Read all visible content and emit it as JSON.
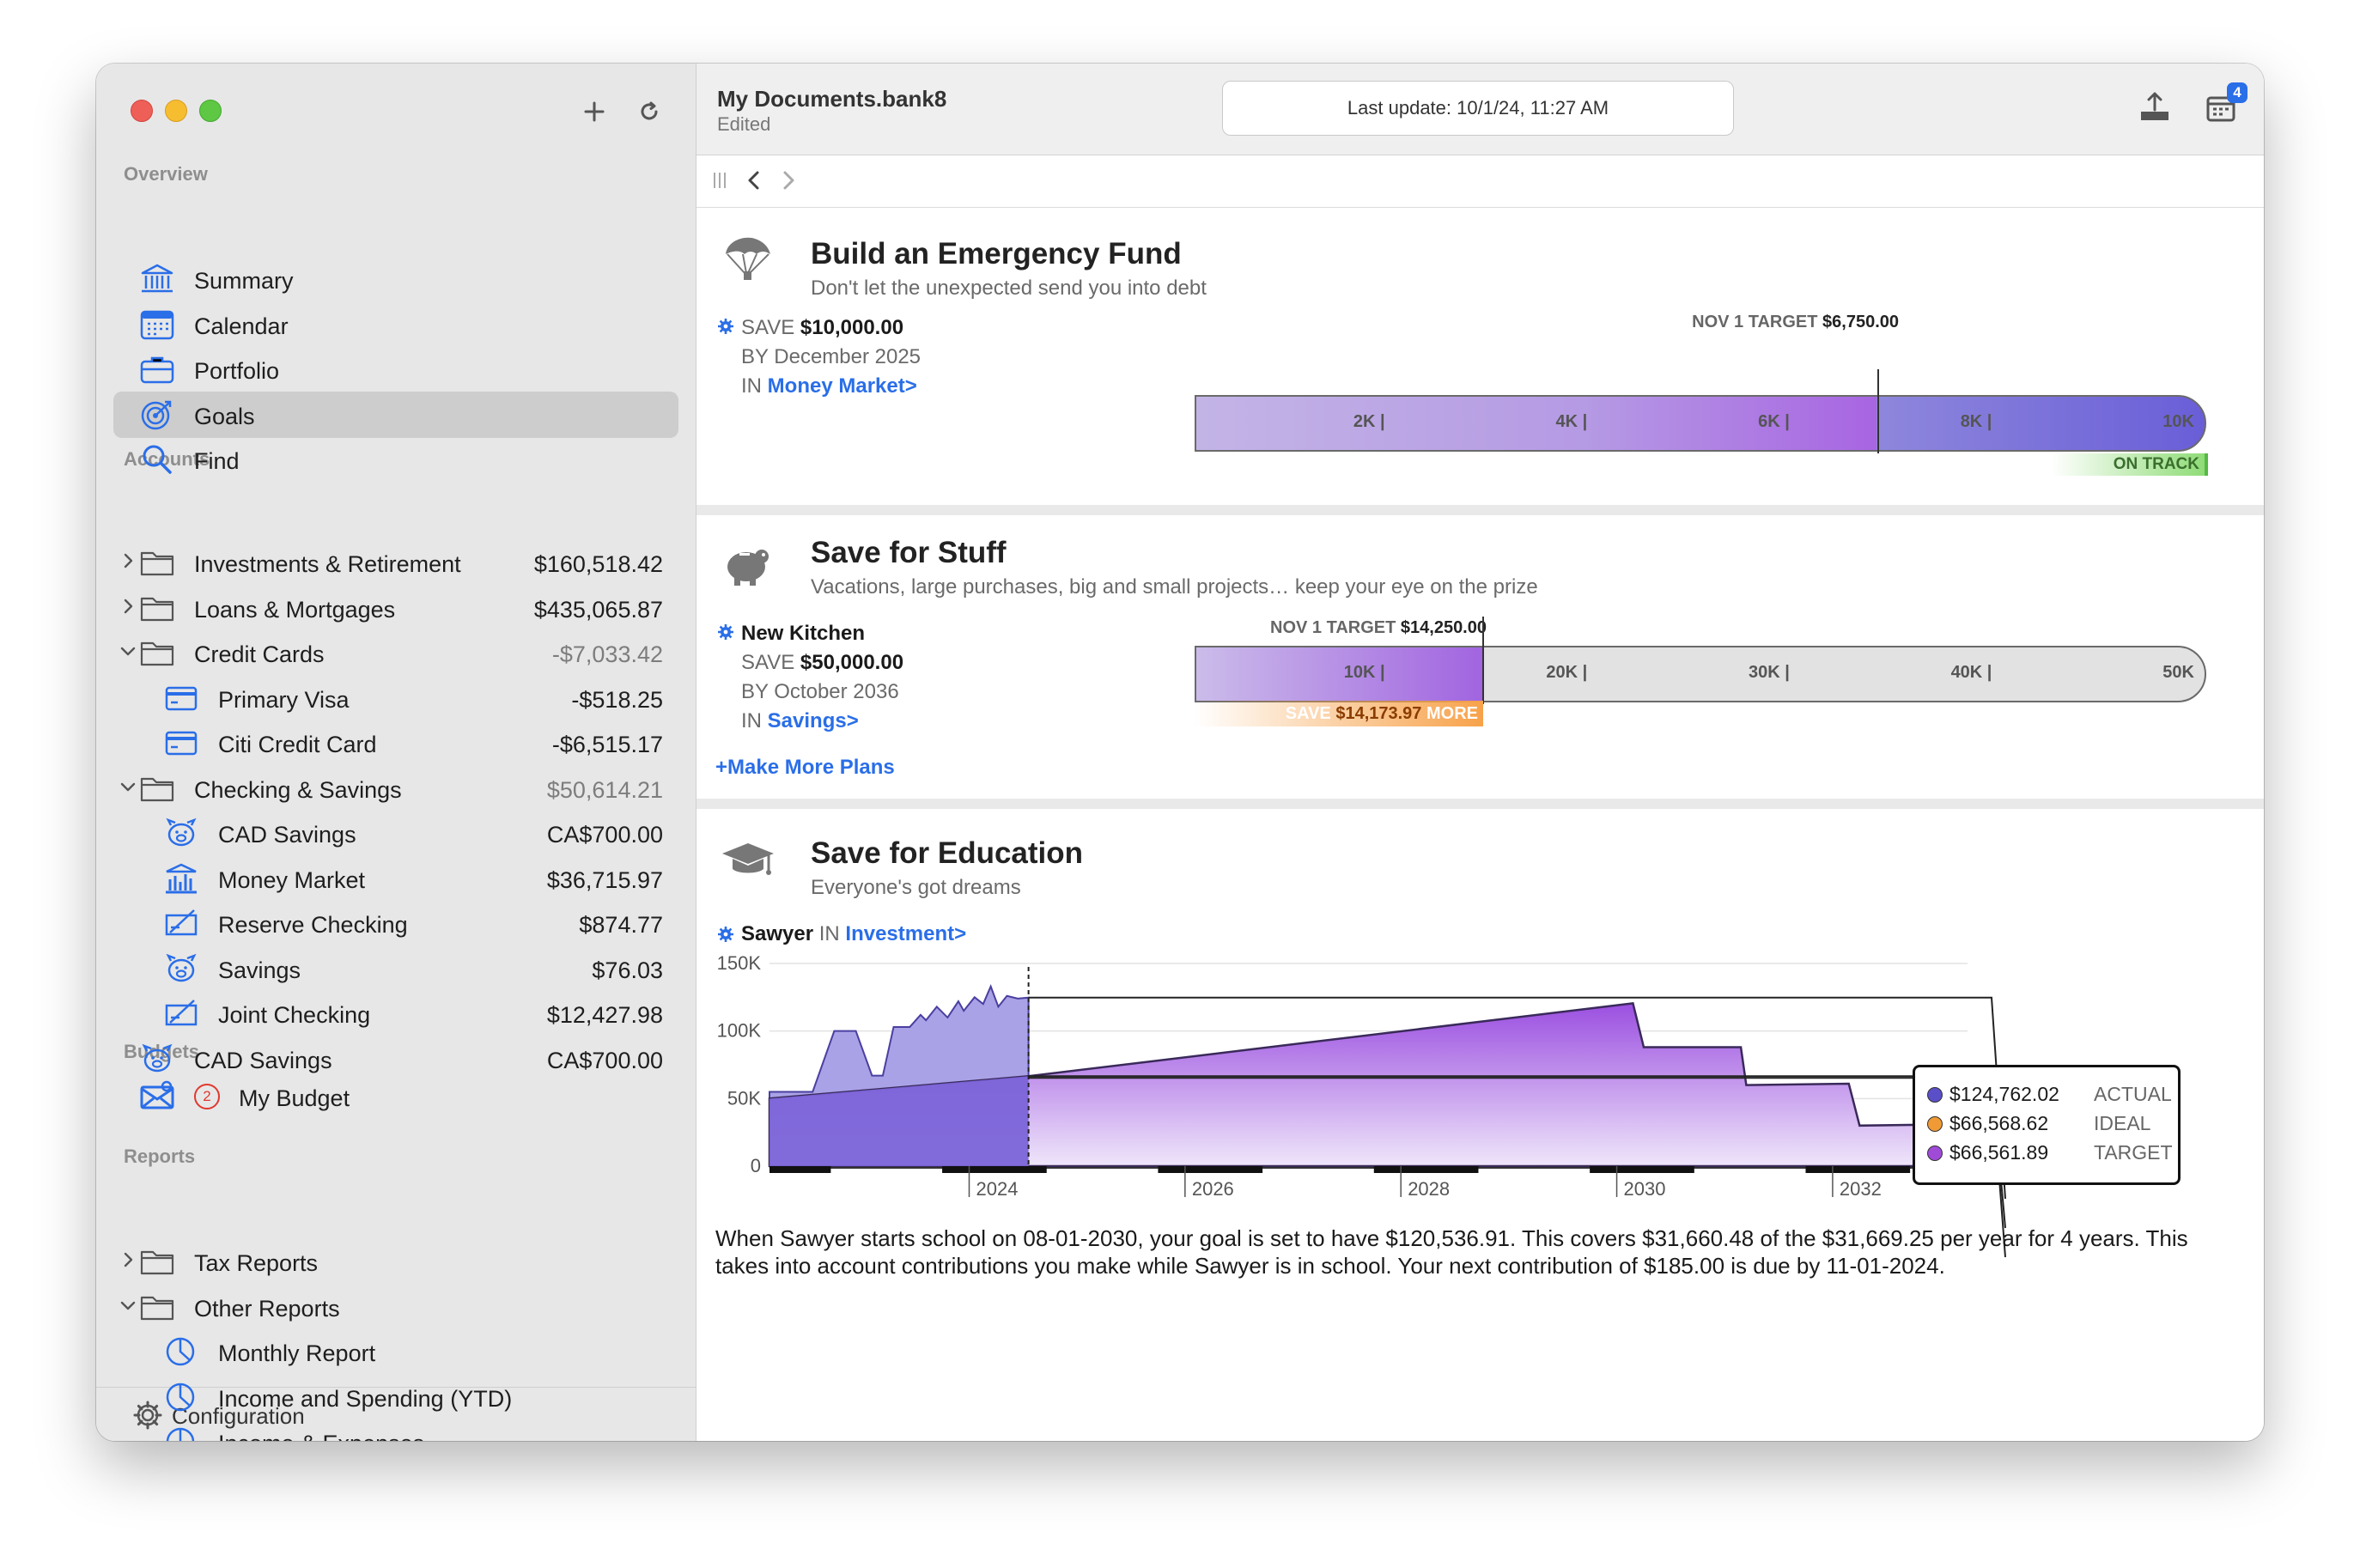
{
  "sidebar": {
    "sections": {
      "overview": "Overview",
      "accounts": "Accounts",
      "budgets": "Budgets",
      "reports": "Reports"
    },
    "overview_items": [
      {
        "label": "Summary",
        "icon": "bank-icon"
      },
      {
        "label": "Calendar",
        "icon": "calendar-icon"
      },
      {
        "label": "Portfolio",
        "icon": "briefcase-icon"
      },
      {
        "label": "Goals",
        "icon": "target-icon",
        "selected": true
      },
      {
        "label": "Find",
        "icon": "magnifier-icon"
      }
    ],
    "accounts": [
      {
        "label": "Investments & Retirement",
        "amount": "$160,518.42",
        "icon": "folder-icon",
        "chevron": "right"
      },
      {
        "label": "Loans & Mortgages",
        "amount": "$435,065.87",
        "icon": "folder-icon",
        "chevron": "right"
      },
      {
        "label": "Credit Cards",
        "amount": "-$7,033.42",
        "icon": "folder-icon",
        "chevron": "down",
        "dim": true
      },
      {
        "label": "Primary Visa",
        "amount": "-$518.25",
        "icon": "credit-card-icon",
        "indent": true
      },
      {
        "label": "Citi Credit Card",
        "amount": "-$6,515.17",
        "icon": "credit-card-icon",
        "indent": true
      },
      {
        "label": "Checking & Savings",
        "amount": "$50,614.21",
        "icon": "folder-icon",
        "chevron": "down",
        "dim": true
      },
      {
        "label": "CAD Savings",
        "amount": "CA$700.00",
        "icon": "piggy-bank-icon",
        "indent": true
      },
      {
        "label": "Money Market",
        "amount": "$36,715.97",
        "icon": "bank-chart-icon",
        "indent": true
      },
      {
        "label": "Reserve Checking",
        "amount": "$874.77",
        "icon": "checkbook-icon",
        "indent": true
      },
      {
        "label": "Savings",
        "amount": "$76.03",
        "icon": "piggy-bank-icon",
        "indent": true
      },
      {
        "label": "Joint Checking",
        "amount": "$12,427.98",
        "icon": "checkbook-icon",
        "indent": true
      },
      {
        "label": "CAD Savings",
        "amount": "CA$700.00",
        "icon": "piggy-bank-icon"
      }
    ],
    "budget": {
      "label": "My Budget",
      "badge": "2",
      "icon": "envelope-icon"
    },
    "reports": [
      {
        "label": "Tax Reports",
        "icon": "folder-icon",
        "chevron": "right"
      },
      {
        "label": "Other Reports",
        "icon": "folder-icon",
        "chevron": "down"
      },
      {
        "label": "Monthly Report",
        "icon": "pie-chart-icon",
        "indent": true
      },
      {
        "label": "Income and Spending (YTD)",
        "icon": "pie-chart-icon",
        "indent": true
      },
      {
        "label": "Income & Expenses",
        "icon": "pie-chart-icon",
        "indent": true
      }
    ],
    "footer": "Configuration"
  },
  "header": {
    "doc_title": "My Documents.bank8",
    "doc_status": "Edited",
    "last_update": "Last update: 10/1/24, 11:27 AM",
    "calendar_badge": "4"
  },
  "goals": {
    "emergency": {
      "title": "Build an Emergency Fund",
      "subtitle": "Don't let the unexpected send you into debt",
      "save_label": "SAVE",
      "save_amount": "$10,000.00",
      "by_label": "BY",
      "by_date": "December 2025",
      "in_label": "IN",
      "account": "Money Market>",
      "target_label": "NOV 1 TARGET",
      "target_amount": "$6,750.00",
      "ticks": [
        "2K |",
        "4K |",
        "6K |",
        "8K |",
        "10K"
      ],
      "status": "ON TRACK",
      "progress": {
        "saved": 6750,
        "target": 6750,
        "goal": 10000
      }
    },
    "stuff": {
      "title": "Save for Stuff",
      "subtitle": "Vacations, large purchases, big and small projects… keep your eye on the prize",
      "plan_name": "New Kitchen",
      "save_label": "SAVE",
      "save_amount": "$50,000.00",
      "by_label": "BY",
      "by_date": "October 2036",
      "in_label": "IN",
      "account": "Savings>",
      "target_label": "NOV 1 TARGET",
      "target_amount": "$14,250.00",
      "ticks": [
        "10K |",
        "20K |",
        "30K |",
        "40K |",
        "50K"
      ],
      "more_label": "SAVE",
      "more_amount": "$14,173.97",
      "more_suffix": "MORE",
      "make_more": "+Make More Plans",
      "progress": {
        "saved": 14250,
        "target": 14250,
        "goal": 50000
      }
    },
    "education": {
      "title": "Save for Education",
      "subtitle": "Everyone's got dreams",
      "person": "Sawyer",
      "in_label": "IN",
      "account": "Investment>",
      "legend": [
        {
          "value": "$124,762.02",
          "name": "ACTUAL",
          "color": "#5b4fc9"
        },
        {
          "value": "$66,568.62",
          "name": "IDEAL",
          "color": "#f09a36"
        },
        {
          "value": "$66,561.89",
          "name": "TARGET",
          "color": "#a04ad8"
        }
      ],
      "description": "When Sawyer starts school on 08-01-2030, your goal is set to have $120,536.91. This covers $31,660.48 of the $31,669.25 per year for 4 years. This takes into account contributions you make while Sawyer is in school. Your next contribution of $185.00 is due by 11-01-2024."
    }
  },
  "chart_data": {
    "type": "area",
    "title": "",
    "xlabel": "",
    "ylabel": "",
    "y_ticks": [
      "150K",
      "100K",
      "50K",
      "0"
    ],
    "x_ticks": [
      "2024",
      "2026",
      "2028",
      "2030",
      "2032"
    ],
    "ylim": [
      0,
      150000
    ],
    "xlim": [
      2022.4,
      2033.5
    ],
    "grid": true,
    "legend_position": "right",
    "series": [
      {
        "name": "ACTUAL",
        "x": [
          2022.4,
          2022.8,
          2023.0,
          2023.2,
          2023.35,
          2023.45,
          2023.55,
          2023.7,
          2023.8,
          2023.85,
          2023.95,
          2024.05,
          2024.15,
          2024.2,
          2024.3,
          2024.38,
          2024.45,
          2024.52,
          2024.6,
          2024.7,
          2024.8
        ],
        "y": [
          55000,
          55000,
          100000,
          100000,
          67000,
          67000,
          103000,
          103000,
          112000,
          108000,
          118000,
          110000,
          122000,
          115000,
          125000,
          120000,
          133000,
          118000,
          126000,
          124000,
          124762
        ]
      },
      {
        "name": "TARGET",
        "x": [
          2022.4,
          2024.8,
          2030.4,
          2030.5,
          2031.4,
          2031.45,
          2032.4,
          2032.5,
          2033.4,
          2033.5
        ],
        "y": [
          50000,
          66562,
          120537,
          88000,
          88000,
          60000,
          61000,
          30000,
          31000,
          0
        ]
      }
    ],
    "today": 2024.8
  }
}
